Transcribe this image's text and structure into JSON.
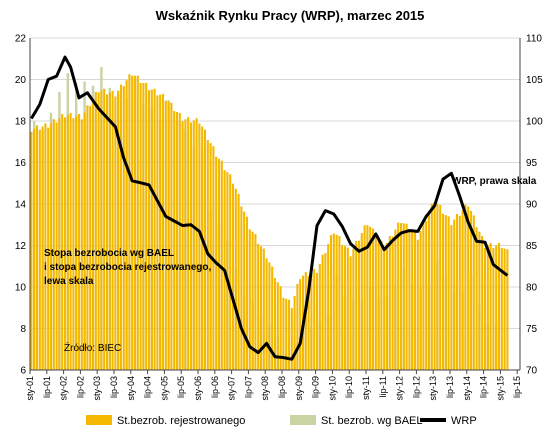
{
  "chart_data": {
    "type": "bar+line",
    "title": "Wskaźnik Rynku Pracy (WRP), marzec 2015",
    "x_tick_labels": [
      "sty-01",
      "lip-01",
      "sty-02",
      "lip-02",
      "sty-03",
      "lip-03",
      "sty-04",
      "lip-04",
      "sty-05",
      "lip-05",
      "sty-06",
      "lip-06",
      "sty-07",
      "lip-07",
      "sty-08",
      "lip-08",
      "sty-09",
      "lip-09",
      "sty-10",
      "lip-10",
      "sty-11",
      "lip-11",
      "sty-12",
      "lip-12",
      "sty-13",
      "lip-13",
      "sty-14",
      "lip-14",
      "sty-15",
      "lip-15"
    ],
    "left_axis": {
      "ticks": [
        6,
        8,
        10,
        12,
        14,
        16,
        18,
        20,
        22
      ],
      "ylim": [
        6,
        22
      ]
    },
    "right_axis": {
      "ticks": [
        70,
        75,
        80,
        85,
        90,
        95,
        100,
        105,
        110
      ],
      "ylim": [
        70,
        110
      ]
    },
    "annotations": {
      "left_label": [
        "Stopa bezrobocia wg BAEL",
        "i stopa bezrobocia rejestrowanego,",
        "lewa skala"
      ],
      "right_label": "WRP, prawa skala",
      "source": "Źródło: BIEC"
    },
    "legend": {
      "position": "bottom",
      "items": [
        {
          "label": "St.bezrob. rejestrowanego",
          "color": "#F5B800",
          "kind": "bar"
        },
        {
          "label": "St. bezrob. wg BAEL",
          "color": "#C9D3A3",
          "kind": "bar"
        },
        {
          "label": "WRP",
          "color": "#000000",
          "kind": "line"
        }
      ]
    },
    "series": [
      {
        "name": "St.bezrob. rejestrowanego",
        "axis": "left",
        "frequency": "monthly",
        "start": "2001-01",
        "anchors": [
          [
            "2001-01",
            17.6
          ],
          [
            "2001-07",
            17.8
          ],
          [
            "2002-01",
            18.3
          ],
          [
            "2002-07",
            18.2
          ],
          [
            "2003-01",
            19.5
          ],
          [
            "2003-07",
            19.3
          ],
          [
            "2004-01",
            20.3
          ],
          [
            "2004-07",
            19.6
          ],
          [
            "2005-01",
            19.1
          ],
          [
            "2005-07",
            18.1
          ],
          [
            "2006-01",
            18.0
          ],
          [
            "2006-07",
            16.4
          ],
          [
            "2007-01",
            15.1
          ],
          [
            "2007-07",
            12.9
          ],
          [
            "2008-01",
            11.5
          ],
          [
            "2008-07",
            9.6
          ],
          [
            "2008-10",
            9.1
          ],
          [
            "2009-01",
            10.5
          ],
          [
            "2009-07",
            10.8
          ],
          [
            "2010-01",
            12.7
          ],
          [
            "2010-07",
            11.6
          ],
          [
            "2011-01",
            13.1
          ],
          [
            "2011-07",
            11.9
          ],
          [
            "2012-01",
            13.2
          ],
          [
            "2012-07",
            12.4
          ],
          [
            "2013-01",
            14.2
          ],
          [
            "2013-07",
            13.1
          ],
          [
            "2014-01",
            14.0
          ],
          [
            "2014-07",
            12.0
          ],
          [
            "2015-01",
            12.0
          ],
          [
            "2015-03",
            11.7
          ]
        ]
      },
      {
        "name": "St. bezrob. wg BAEL",
        "axis": "left",
        "frequency": "quarterly",
        "values": [
          {
            "x": "2001-Q1",
            "y": 18.0
          },
          {
            "x": "2001-Q2",
            "y": 17.5
          },
          {
            "x": "2001-Q3",
            "y": 18.4
          },
          {
            "x": "2001-Q4",
            "y": 19.4
          },
          {
            "x": "2002-Q1",
            "y": 20.3
          },
          {
            "x": "2002-Q2",
            "y": 19.8
          },
          {
            "x": "2002-Q3",
            "y": 19.9
          },
          {
            "x": "2002-Q4",
            "y": 19.7
          },
          {
            "x": "2003-Q1",
            "y": 20.6
          },
          {
            "x": "2003-Q2",
            "y": 19.6
          },
          {
            "x": "2003-Q3",
            "y": 19.3
          },
          {
            "x": "2003-Q4",
            "y": 19.1
          },
          {
            "x": "2004-Q1",
            "y": 20.0
          },
          {
            "x": "2004-Q2",
            "y": 18.9
          },
          {
            "x": "2004-Q3",
            "y": 18.6
          },
          {
            "x": "2004-Q4",
            "y": 18.0
          },
          {
            "x": "2005-Q1",
            "y": 19.0
          },
          {
            "x": "2005-Q2",
            "y": 18.0
          },
          {
            "x": "2005-Q3",
            "y": 17.6
          },
          {
            "x": "2005-Q4",
            "y": 16.7
          },
          {
            "x": "2006-Q1",
            "y": 16.6
          },
          {
            "x": "2006-Q2",
            "y": 13.7
          },
          {
            "x": "2006-Q3",
            "y": 13.0
          },
          {
            "x": "2006-Q4",
            "y": 12.2
          },
          {
            "x": "2007-Q1",
            "y": 10.9
          },
          {
            "x": "2007-Q2",
            "y": 9.6
          },
          {
            "x": "2007-Q3",
            "y": 9.3
          },
          {
            "x": "2007-Q4",
            "y": 8.5
          },
          {
            "x": "2008-Q1",
            "y": 8.2
          },
          {
            "x": "2008-Q2",
            "y": 7.6
          },
          {
            "x": "2008-Q3",
            "y": 6.7
          },
          {
            "x": "2008-Q4",
            "y": 6.7
          },
          {
            "x": "2009-Q1",
            "y": 8.1
          },
          {
            "x": "2009-Q2",
            "y": 8.0
          },
          {
            "x": "2009-Q3",
            "y": 8.3
          },
          {
            "x": "2009-Q4",
            "y": 8.6
          },
          {
            "x": "2010-Q1",
            "y": 10.6
          },
          {
            "x": "2010-Q2",
            "y": 9.6
          },
          {
            "x": "2010-Q3",
            "y": 9.4
          },
          {
            "x": "2010-Q4",
            "y": 9.3
          },
          {
            "x": "2011-Q1",
            "y": 10.0
          },
          {
            "x": "2011-Q2",
            "y": 9.5
          },
          {
            "x": "2011-Q3",
            "y": 9.6
          },
          {
            "x": "2011-Q4",
            "y": 10.1
          },
          {
            "x": "2012-Q1",
            "y": 10.9
          },
          {
            "x": "2012-Q2",
            "y": 10.1
          },
          {
            "x": "2012-Q3",
            "y": 9.9
          },
          {
            "x": "2012-Q4",
            "y": 10.1
          },
          {
            "x": "2013-Q1",
            "y": 11.3
          },
          {
            "x": "2013-Q2",
            "y": 10.4
          },
          {
            "x": "2013-Q3",
            "y": 9.8
          },
          {
            "x": "2013-Q4",
            "y": 9.8
          },
          {
            "x": "2014-Q1",
            "y": 10.6
          },
          {
            "x": "2014-Q2",
            "y": 9.1
          },
          {
            "x": "2014-Q3",
            "y": 8.2
          },
          {
            "x": "2014-Q4",
            "y": 8.1
          }
        ]
      },
      {
        "name": "WRP",
        "axis": "right",
        "frequency": "monthly",
        "start": "2001-01",
        "anchors": [
          [
            "2001-01",
            100.3
          ],
          [
            "2001-04",
            102
          ],
          [
            "2001-07",
            105
          ],
          [
            "2001-10",
            105.4
          ],
          [
            "2002-01",
            107.7
          ],
          [
            "2002-03",
            106.5
          ],
          [
            "2002-06",
            102.8
          ],
          [
            "2002-09",
            103.4
          ],
          [
            "2003-01",
            101.5
          ],
          [
            "2003-07",
            99.3
          ],
          [
            "2003-10",
            95.5
          ],
          [
            "2004-01",
            92.8
          ],
          [
            "2004-07",
            92.3
          ],
          [
            "2004-10",
            90.4
          ],
          [
            "2005-01",
            88.5
          ],
          [
            "2005-07",
            87.4
          ],
          [
            "2005-10",
            87.5
          ],
          [
            "2006-01",
            86.7
          ],
          [
            "2006-04",
            84.0
          ],
          [
            "2006-07",
            82.9
          ],
          [
            "2006-10",
            82.0
          ],
          [
            "2007-01",
            78.5
          ],
          [
            "2007-04",
            75.0
          ],
          [
            "2007-07",
            72.8
          ],
          [
            "2007-10",
            72.1
          ],
          [
            "2008-01",
            73.2
          ],
          [
            "2008-04",
            71.6
          ],
          [
            "2008-07",
            71.5
          ],
          [
            "2008-10",
            71.3
          ],
          [
            "2009-01",
            73.2
          ],
          [
            "2009-04",
            79.5
          ],
          [
            "2009-07",
            87.4
          ],
          [
            "2009-10",
            89.2
          ],
          [
            "2010-01",
            88.8
          ],
          [
            "2010-04",
            87.3
          ],
          [
            "2010-07",
            85.2
          ],
          [
            "2010-10",
            84.3
          ],
          [
            "2011-01",
            84.8
          ],
          [
            "2011-04",
            86.4
          ],
          [
            "2011-07",
            84.5
          ],
          [
            "2011-10",
            85.6
          ],
          [
            "2012-01",
            86.5
          ],
          [
            "2012-04",
            86.8
          ],
          [
            "2012-07",
            86.7
          ],
          [
            "2012-10",
            88.5
          ],
          [
            "2013-01",
            89.8
          ],
          [
            "2013-04",
            93.0
          ],
          [
            "2013-07",
            93.7
          ],
          [
            "2013-10",
            90.9
          ],
          [
            "2014-01",
            87.8
          ],
          [
            "2014-04",
            85.5
          ],
          [
            "2014-07",
            85.4
          ],
          [
            "2014-10",
            82.7
          ],
          [
            "2015-01",
            81.9
          ],
          [
            "2015-03",
            81.4
          ]
        ]
      }
    ]
  }
}
